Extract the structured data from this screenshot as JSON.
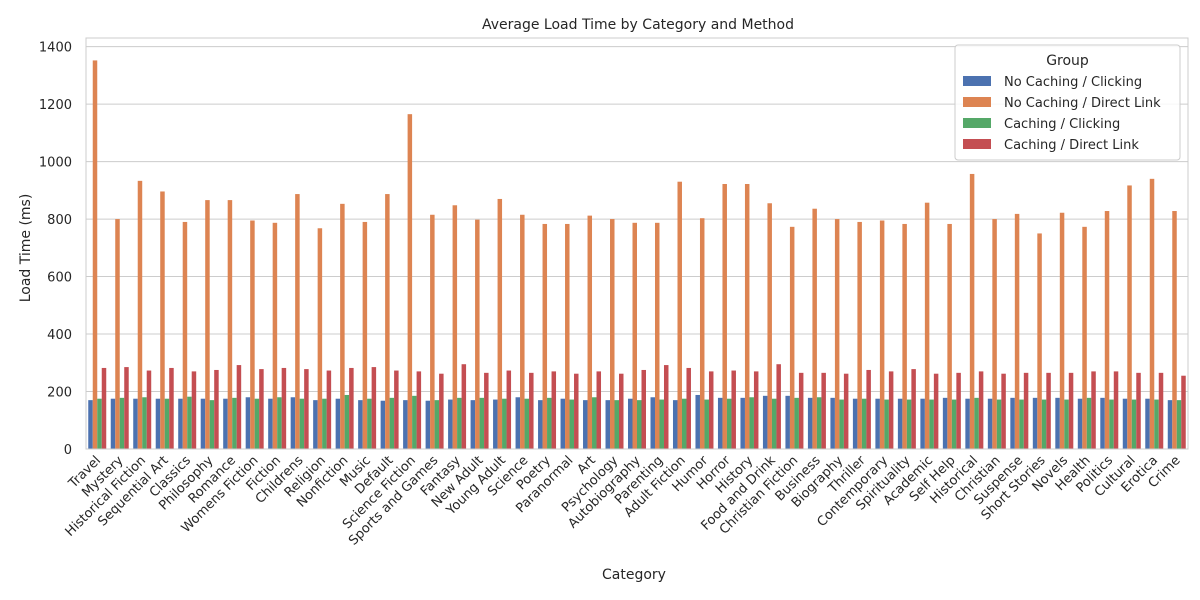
{
  "chart_data": {
    "type": "bar",
    "title": "Average Load Time by Category and Method",
    "xlabel": "Category",
    "ylabel": "Load Time (ms)",
    "ylim": [
      0,
      1430
    ],
    "yticks": [
      0,
      200,
      400,
      600,
      800,
      1000,
      1200,
      1400
    ],
    "grid": "y",
    "legend_title": "Group",
    "legend_position": "top-right",
    "categories": [
      "Travel",
      "Mystery",
      "Historical Fiction",
      "Sequential Art",
      "Classics",
      "Philosophy",
      "Romance",
      "Womens Fiction",
      "Fiction",
      "Childrens",
      "Religion",
      "Nonfiction",
      "Music",
      "Default",
      "Science Fiction",
      "Sports and Games",
      "Fantasy",
      "New Adult",
      "Young Adult",
      "Science",
      "Poetry",
      "Paranormal",
      "Art",
      "Psychology",
      "Autobiography",
      "Parenting",
      "Adult Fiction",
      "Humor",
      "Horror",
      "History",
      "Food and Drink",
      "Christian Fiction",
      "Business",
      "Biography",
      "Thriller",
      "Contemporary",
      "Spirituality",
      "Academic",
      "Self Help",
      "Historical",
      "Christian",
      "Suspense",
      "Short Stories",
      "Novels",
      "Health",
      "Politics",
      "Cultural",
      "Erotica",
      "Crime"
    ],
    "series": [
      {
        "name": "No Caching / Clicking",
        "color": "#4c72b0",
        "values": [
          170,
          175,
          175,
          175,
          175,
          175,
          175,
          180,
          175,
          180,
          170,
          175,
          170,
          168,
          170,
          168,
          172,
          170,
          172,
          180,
          170,
          175,
          170,
          170,
          175,
          180,
          170,
          188,
          178,
          178,
          185,
          185,
          178,
          178,
          175,
          175,
          175,
          175,
          178,
          175,
          175,
          178,
          178,
          178,
          175,
          178,
          175,
          175,
          170
        ]
      },
      {
        "name": "No Caching / Direct Link",
        "color": "#dd8452",
        "values": [
          1352,
          800,
          933,
          896,
          790,
          866,
          866,
          795,
          787,
          887,
          768,
          853,
          790,
          887,
          1165,
          815,
          848,
          798,
          870,
          815,
          783,
          783,
          812,
          800,
          787,
          787,
          930,
          803,
          922,
          922,
          855,
          773,
          836,
          800,
          790,
          795,
          783,
          857,
          783,
          957,
          800,
          818,
          750,
          822,
          773,
          828,
          917,
          940,
          828
        ]
      },
      {
        "name": "Caching / Clicking",
        "color": "#55a868",
        "values": [
          175,
          178,
          180,
          175,
          182,
          170,
          178,
          175,
          180,
          175,
          175,
          188,
          175,
          178,
          185,
          170,
          178,
          178,
          175,
          175,
          178,
          172,
          180,
          170,
          170,
          172,
          175,
          172,
          175,
          180,
          175,
          178,
          180,
          172,
          175,
          172,
          172,
          172,
          172,
          178,
          172,
          172,
          172,
          172,
          178,
          172,
          172,
          172,
          170
        ]
      },
      {
        "name": "Caching / Direct Link",
        "color": "#c44e52",
        "values": [
          282,
          285,
          273,
          282,
          270,
          275,
          292,
          278,
          282,
          278,
          273,
          282,
          285,
          273,
          270,
          262,
          295,
          265,
          273,
          265,
          270,
          262,
          270,
          262,
          275,
          292,
          282,
          270,
          273,
          270,
          295,
          265,
          265,
          262,
          275,
          270,
          278,
          262,
          265,
          270,
          262,
          265,
          265,
          265,
          270,
          270,
          265,
          265,
          255
        ]
      }
    ]
  }
}
